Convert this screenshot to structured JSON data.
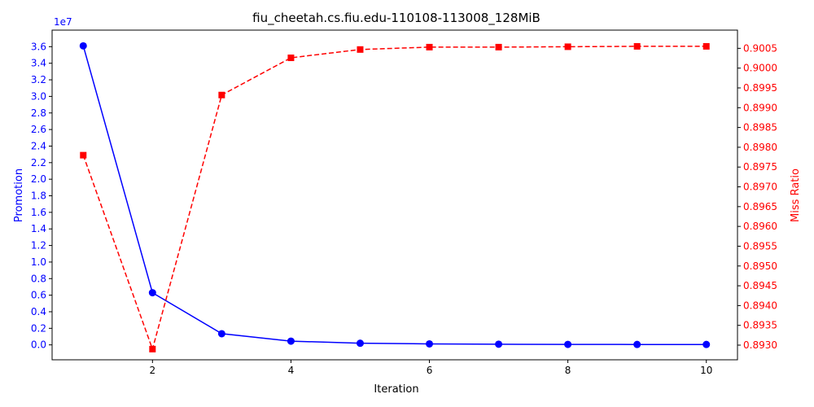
{
  "chart_data": {
    "type": "line",
    "title": "fiu_cheetah.cs.fiu.edu-110108-113008_128MiB",
    "xlabel": "Iteration",
    "x": [
      1,
      2,
      3,
      4,
      5,
      6,
      7,
      8,
      9,
      10
    ],
    "x_ticks": [
      2,
      4,
      6,
      8,
      10
    ],
    "xlim": [
      0.55,
      10.45
    ],
    "left_axis": {
      "label": "Promotion",
      "color": "#0000ff",
      "multiplier_label": "1e7",
      "ticks": [
        0.0,
        0.2,
        0.4,
        0.6,
        0.8,
        1.0,
        1.2,
        1.4,
        1.6,
        1.8,
        2.0,
        2.2,
        2.4,
        2.6,
        2.8,
        3.0,
        3.2,
        3.4,
        3.6
      ],
      "tick_labels": [
        "0.0",
        "0.2",
        "0.4",
        "0.6",
        "0.8",
        "1.0",
        "1.2",
        "1.4",
        "1.6",
        "1.8",
        "2.0",
        "2.2",
        "2.4",
        "2.6",
        "2.8",
        "3.0",
        "3.2",
        "3.4",
        "3.6"
      ],
      "ylim": [
        -0.18,
        3.8
      ]
    },
    "right_axis": {
      "label": "Miss Ratio",
      "color": "#ff0000",
      "ticks": [
        0.893,
        0.8935,
        0.894,
        0.8945,
        0.895,
        0.8955,
        0.896,
        0.8965,
        0.897,
        0.8975,
        0.898,
        0.8985,
        0.899,
        0.8995,
        0.9,
        0.9005
      ],
      "tick_labels": [
        "0.8930",
        "0.8935",
        "0.8940",
        "0.8945",
        "0.8950",
        "0.8955",
        "0.8960",
        "0.8965",
        "0.8970",
        "0.8975",
        "0.8980",
        "0.8985",
        "0.8990",
        "0.8995",
        "0.9000",
        "0.9005"
      ],
      "ylim": [
        0.89263,
        0.90096
      ]
    },
    "series": [
      {
        "axis": "left",
        "color": "#0000ff",
        "linestyle": "solid",
        "marker": "circle",
        "values": [
          3.61,
          0.63,
          0.135,
          0.045,
          0.02,
          0.012,
          0.008,
          0.006,
          0.005,
          0.005
        ]
      },
      {
        "axis": "right",
        "color": "#ff0000",
        "linestyle": "dashed",
        "marker": "square",
        "values": [
          0.8978,
          0.8929,
          0.89932,
          0.90026,
          0.90047,
          0.90053,
          0.90053,
          0.90054,
          0.90055,
          0.90055
        ]
      }
    ],
    "grid": false,
    "legend": "none"
  }
}
